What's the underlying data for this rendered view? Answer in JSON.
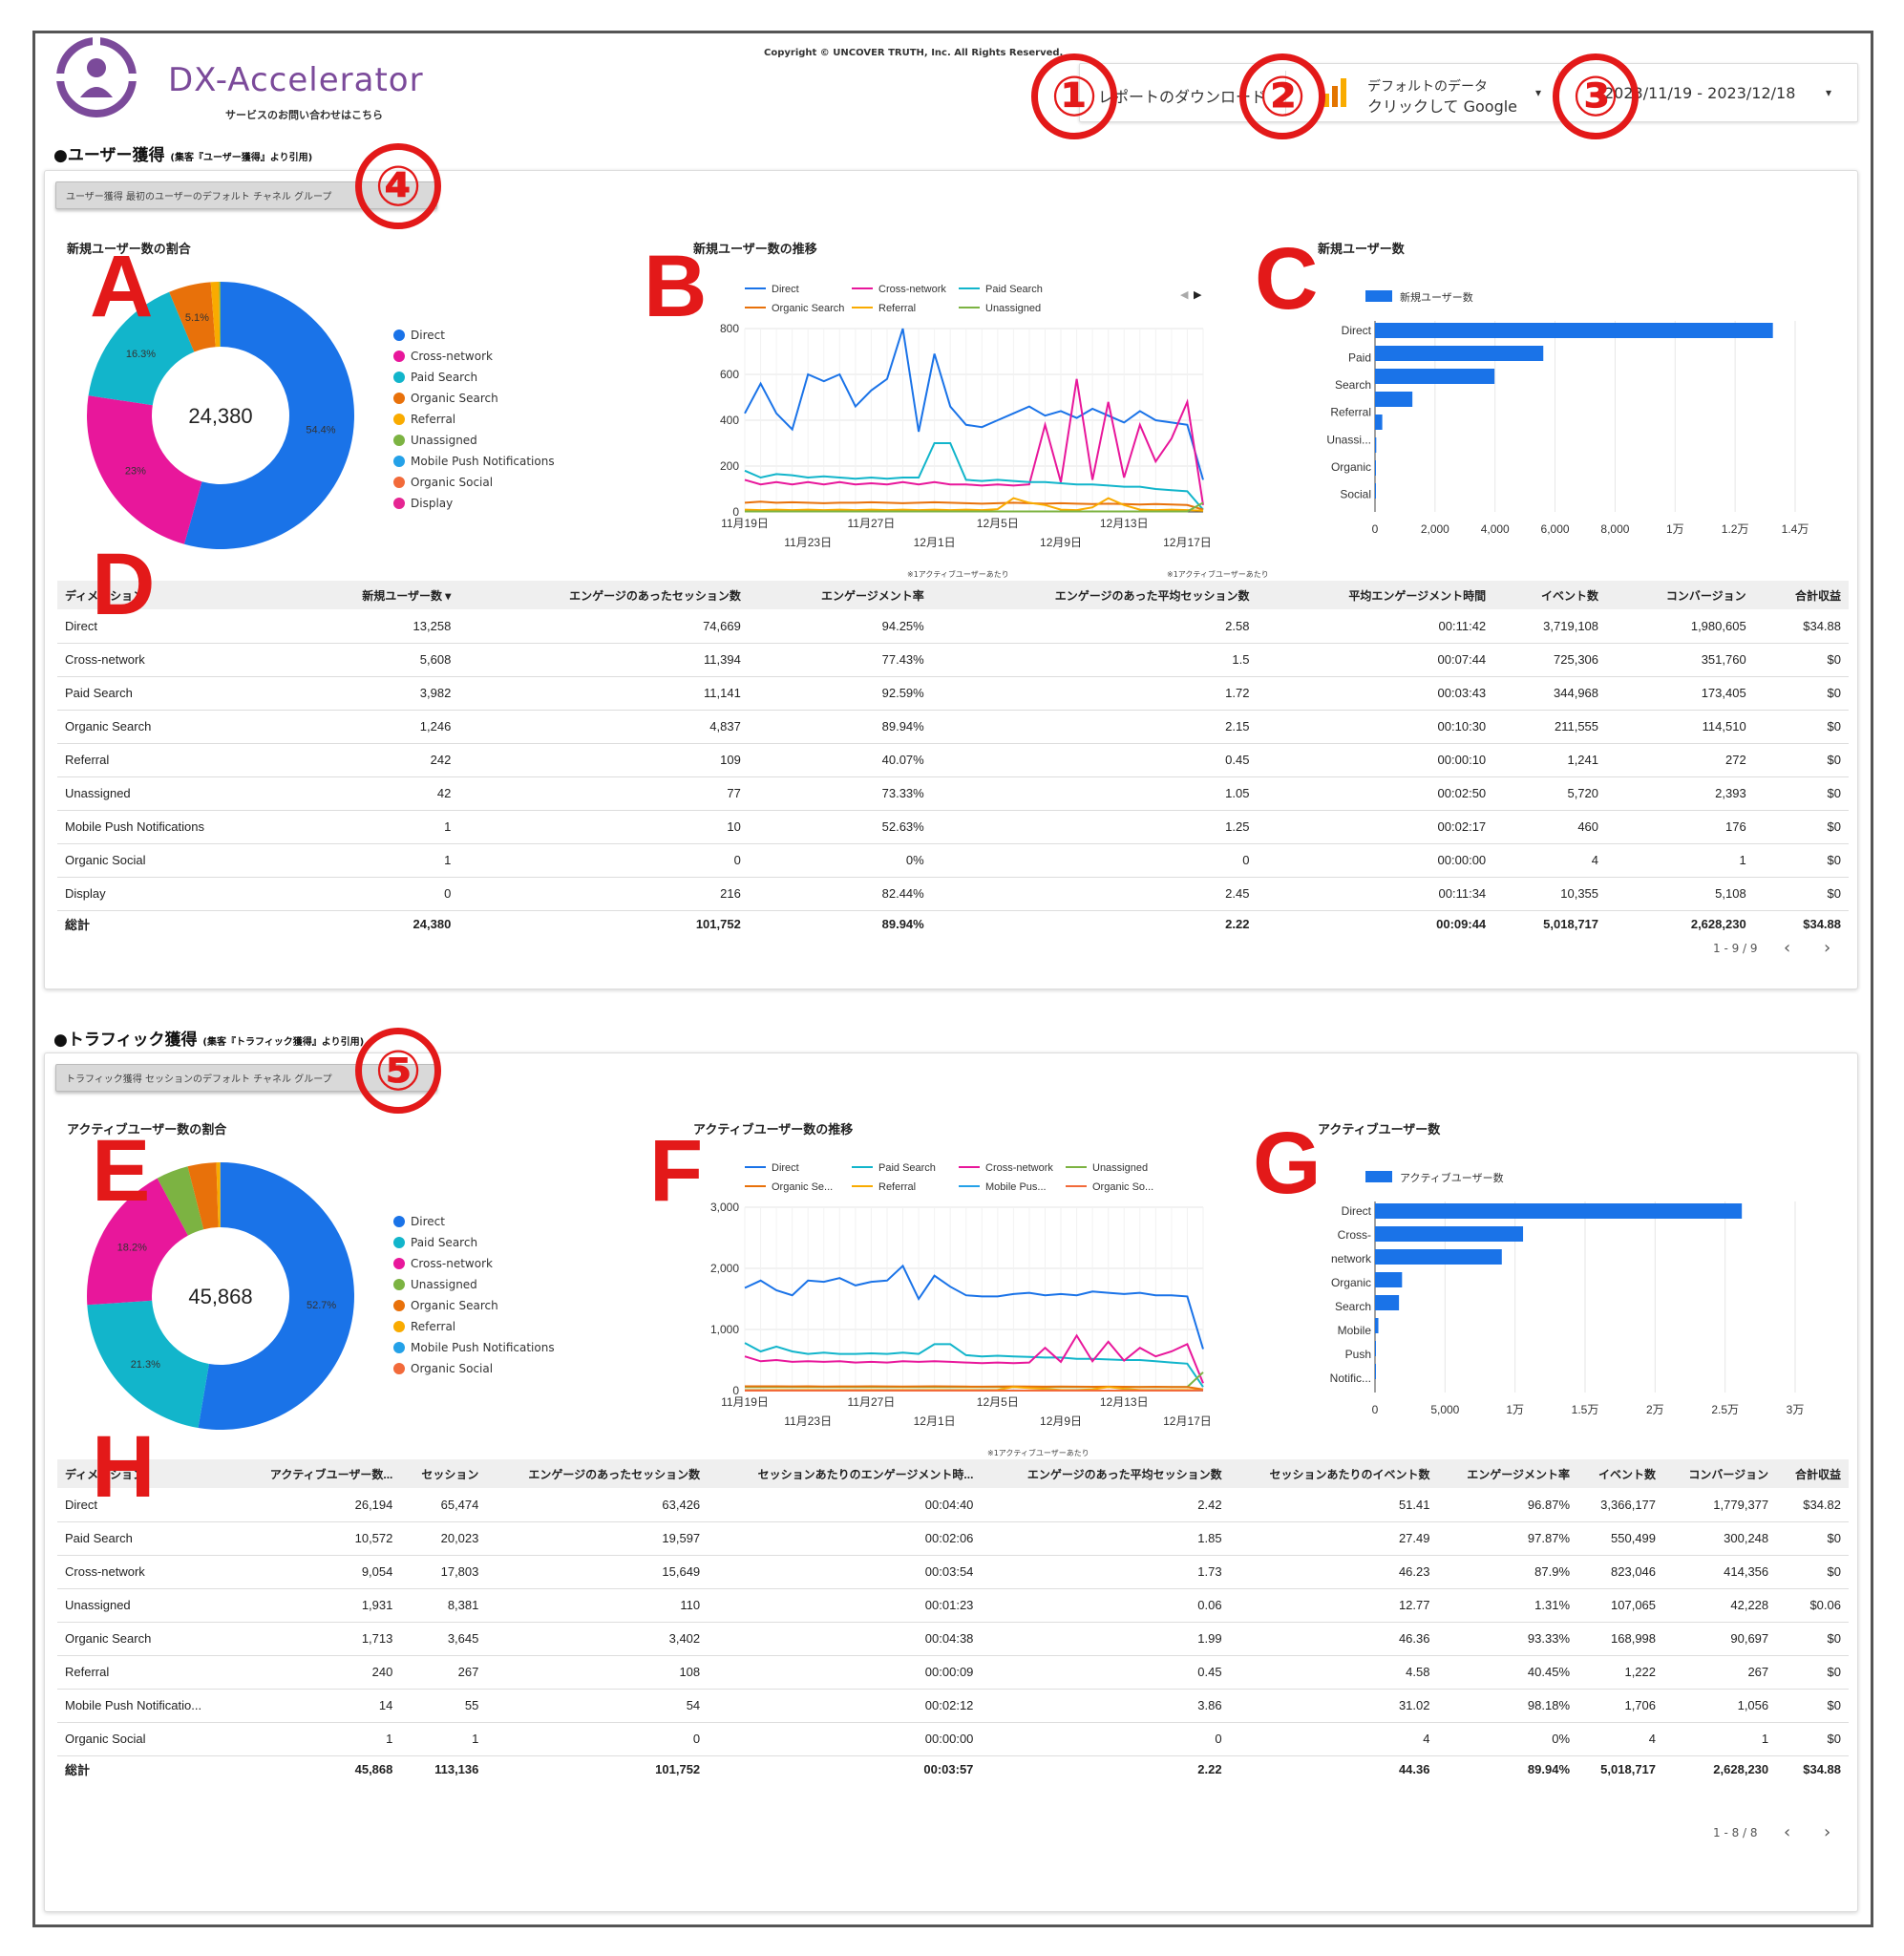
{
  "header": {
    "copyright": "Copyright © UNCOVER TRUTH, Inc. All Rights Reserved.",
    "logo_text": "DX-Accelerator",
    "logo_sub": "サービスのお問い合わせはこちら",
    "download_label": "レポートのダウンロード",
    "data_source_line1": "デフォルトのデータ",
    "data_source_line2": "クリックして Google",
    "date_range": "2023/11/19 - 2023/12/18"
  },
  "markers": {
    "m1": "①",
    "m2": "②",
    "m3": "③",
    "m4": "④",
    "m5": "⑤",
    "A": "A",
    "B": "B",
    "C": "C",
    "D": "D",
    "E": "E",
    "F": "F",
    "G": "G",
    "H": "H"
  },
  "section1": {
    "title": "●ユーザー獲得",
    "title_note": "(集客『ユーザー獲得』より引用)",
    "chip": "ユーザー獲得 最初のユーザーのデフォルト チャネル グループ",
    "donut_title": "新規ユーザー数の割合",
    "donut_total": "24,380",
    "donut_labels": [
      "54.4%",
      "23%",
      "16.3%",
      "5.1%"
    ],
    "legend": [
      {
        "name": "Direct",
        "color": "#1a73e8"
      },
      {
        "name": "Cross-network",
        "color": "#e8179b"
      },
      {
        "name": "Paid Search",
        "color": "#12b5cb"
      },
      {
        "name": "Organic Search",
        "color": "#e8710a"
      },
      {
        "name": "Referral",
        "color": "#f9ab00"
      },
      {
        "name": "Unassigned",
        "color": "#7cb342"
      },
      {
        "name": "Mobile Push Notifications",
        "color": "#24a1e8"
      },
      {
        "name": "Organic Social",
        "color": "#f26a3a"
      },
      {
        "name": "Display",
        "color": "#e52592"
      }
    ],
    "line_title": "新規ユーザー数の推移",
    "line_legend": [
      "Direct",
      "Cross-network",
      "Paid Search",
      "Organic Search",
      "Referral",
      "Unassigned"
    ],
    "line_y_ticks": [
      "800",
      "600",
      "400",
      "200",
      "0"
    ],
    "line_x_top": [
      "11月19日",
      "11月27日",
      "12月5日",
      "12月13日"
    ],
    "line_x_bottom": [
      "11月23日",
      "12月1日",
      "12月9日",
      "12月17日"
    ],
    "bar_title": "新規ユーザー数",
    "bar_legend": "新規ユーザー数",
    "bar_labels": [
      "Direct",
      "Paid",
      "Search",
      "Referral",
      "Unassi...",
      "Organic",
      "Social"
    ],
    "bar_x_ticks": [
      "0",
      "2,000",
      "4,000",
      "6,000",
      "8,000",
      "1万",
      "1.2万",
      "1.4万"
    ],
    "notes": [
      "※1アクティブユーザーあたり",
      "※1アクティブユーザーあたり"
    ],
    "table_headers": [
      "ディメンション",
      "新規ユーザー数 ▾",
      "エンゲージのあったセッション数",
      "エンゲージメント率",
      "エンゲージのあった平均セッション数",
      "平均エンゲージメント時間",
      "イベント数",
      "コンバージョン",
      "合計収益"
    ],
    "table_rows": [
      [
        "Direct",
        "13,258",
        "74,669",
        "94.25%",
        "2.58",
        "00:11:42",
        "3,719,108",
        "1,980,605",
        "$34.88"
      ],
      [
        "Cross-network",
        "5,608",
        "11,394",
        "77.43%",
        "1.5",
        "00:07:44",
        "725,306",
        "351,760",
        "$0"
      ],
      [
        "Paid Search",
        "3,982",
        "11,141",
        "92.59%",
        "1.72",
        "00:03:43",
        "344,968",
        "173,405",
        "$0"
      ],
      [
        "Organic Search",
        "1,246",
        "4,837",
        "89.94%",
        "2.15",
        "00:10:30",
        "211,555",
        "114,510",
        "$0"
      ],
      [
        "Referral",
        "242",
        "109",
        "40.07%",
        "0.45",
        "00:00:10",
        "1,241",
        "272",
        "$0"
      ],
      [
        "Unassigned",
        "42",
        "77",
        "73.33%",
        "1.05",
        "00:02:50",
        "5,720",
        "2,393",
        "$0"
      ],
      [
        "Mobile Push Notifications",
        "1",
        "10",
        "52.63%",
        "1.25",
        "00:02:17",
        "460",
        "176",
        "$0"
      ],
      [
        "Organic Social",
        "1",
        "0",
        "0%",
        "0",
        "00:00:00",
        "4",
        "1",
        "$0"
      ],
      [
        "Display",
        "0",
        "216",
        "82.44%",
        "2.45",
        "00:11:34",
        "10,355",
        "5,108",
        "$0"
      ]
    ],
    "table_total": [
      "総計",
      "24,380",
      "101,752",
      "89.94%",
      "2.22",
      "00:09:44",
      "5,018,717",
      "2,628,230",
      "$34.88"
    ],
    "pager": "1 - 9 / 9"
  },
  "section2": {
    "title": "●トラフィック獲得",
    "title_note": "(集客『トラフィック獲得』より引用)",
    "chip": "トラフィック獲得 セッションのデフォルト チャネル グループ",
    "donut_title": "アクティブユーザー数の割合",
    "donut_total": "45,868",
    "donut_labels": [
      "52.7%",
      "21.3%",
      "18.2%"
    ],
    "legend": [
      {
        "name": "Direct",
        "color": "#1a73e8"
      },
      {
        "name": "Paid Search",
        "color": "#12b5cb"
      },
      {
        "name": "Cross-network",
        "color": "#e8179b"
      },
      {
        "name": "Unassigned",
        "color": "#7cb342"
      },
      {
        "name": "Organic Search",
        "color": "#e8710a"
      },
      {
        "name": "Referral",
        "color": "#f9ab00"
      },
      {
        "name": "Mobile Push Notifications",
        "color": "#24a1e8"
      },
      {
        "name": "Organic Social",
        "color": "#f26a3a"
      }
    ],
    "line_title": "アクティブユーザー数の推移",
    "line_legend": [
      "Direct",
      "Paid Search",
      "Cross-network",
      "Unassigned",
      "Organic Se...",
      "Referral",
      "Mobile Pus...",
      "Organic So..."
    ],
    "line_y_ticks": [
      "3,000",
      "2,000",
      "1,000",
      "0"
    ],
    "line_x_top": [
      "11月19日",
      "11月27日",
      "12月5日",
      "12月13日"
    ],
    "line_x_bottom": [
      "11月23日",
      "12月1日",
      "12月9日",
      "12月17日"
    ],
    "bar_title": "アクティブユーザー数",
    "bar_legend": "アクティブユーザー数",
    "bar_labels": [
      "Direct",
      "Cross-",
      "network",
      "Organic",
      "Search",
      "Mobile",
      "Push",
      "Notific..."
    ],
    "bar_x_ticks": [
      "0",
      "5,000",
      "1万",
      "1.5万",
      "2万",
      "2.5万",
      "3万"
    ],
    "note": "※1アクティブユーザーあたり",
    "table_headers": [
      "ディメンション",
      "アクティブユーザー数...",
      "セッション",
      "エンゲージのあったセッション数",
      "セッションあたりのエンゲージメント時...",
      "エンゲージのあった平均セッション数",
      "セッションあたりのイベント数",
      "エンゲージメント率",
      "イベント数",
      "コンバージョン",
      "合計収益"
    ],
    "table_rows": [
      [
        "Direct",
        "26,194",
        "65,474",
        "63,426",
        "00:04:40",
        "2.42",
        "51.41",
        "96.87%",
        "3,366,177",
        "1,779,377",
        "$34.82"
      ],
      [
        "Paid Search",
        "10,572",
        "20,023",
        "19,597",
        "00:02:06",
        "1.85",
        "27.49",
        "97.87%",
        "550,499",
        "300,248",
        "$0"
      ],
      [
        "Cross-network",
        "9,054",
        "17,803",
        "15,649",
        "00:03:54",
        "1.73",
        "46.23",
        "87.9%",
        "823,046",
        "414,356",
        "$0"
      ],
      [
        "Unassigned",
        "1,931",
        "8,381",
        "110",
        "00:01:23",
        "0.06",
        "12.77",
        "1.31%",
        "107,065",
        "42,228",
        "$0.06"
      ],
      [
        "Organic Search",
        "1,713",
        "3,645",
        "3,402",
        "00:04:38",
        "1.99",
        "46.36",
        "93.33%",
        "168,998",
        "90,697",
        "$0"
      ],
      [
        "Referral",
        "240",
        "267",
        "108",
        "00:00:09",
        "0.45",
        "4.58",
        "40.45%",
        "1,222",
        "267",
        "$0"
      ],
      [
        "Mobile Push Notificatio...",
        "14",
        "55",
        "54",
        "00:02:12",
        "3.86",
        "31.02",
        "98.18%",
        "1,706",
        "1,056",
        "$0"
      ],
      [
        "Organic Social",
        "1",
        "1",
        "0",
        "00:00:00",
        "0",
        "4",
        "0%",
        "4",
        "1",
        "$0"
      ]
    ],
    "table_total": [
      "総計",
      "45,868",
      "113,136",
      "101,752",
      "00:03:57",
      "2.22",
      "44.36",
      "89.94%",
      "5,018,717",
      "2,628,230",
      "$34.88"
    ],
    "pager": "1 - 8 / 8"
  },
  "chart_data": [
    {
      "type": "pie",
      "title": "新規ユーザー数の割合",
      "categories": [
        "Direct",
        "Cross-network",
        "Paid Search",
        "Organic Search",
        "Referral",
        "Unassigned",
        "Mobile Push Notifications",
        "Organic Social",
        "Display"
      ],
      "values": [
        13258,
        5608,
        3982,
        1246,
        242,
        42,
        1,
        1,
        0
      ],
      "total": 24380
    },
    {
      "type": "line",
      "title": "新規ユーザー数の推移",
      "ylim": [
        0,
        800
      ],
      "x": [
        "11/19",
        "11/20",
        "11/21",
        "11/22",
        "11/23",
        "11/24",
        "11/25",
        "11/26",
        "11/27",
        "11/28",
        "11/29",
        "11/30",
        "12/1",
        "12/2",
        "12/3",
        "12/4",
        "12/5",
        "12/6",
        "12/7",
        "12/8",
        "12/9",
        "12/10",
        "12/11",
        "12/12",
        "12/13",
        "12/14",
        "12/15",
        "12/16",
        "12/17",
        "12/18"
      ],
      "series": [
        {
          "name": "Direct",
          "color": "#1a73e8",
          "values": [
            430,
            560,
            430,
            360,
            600,
            570,
            600,
            460,
            530,
            580,
            800,
            350,
            690,
            460,
            380,
            370,
            400,
            430,
            460,
            420,
            440,
            410,
            450,
            420,
            390,
            440,
            400,
            390,
            380,
            140
          ]
        },
        {
          "name": "Cross-network",
          "color": "#e8179b",
          "values": [
            140,
            120,
            130,
            120,
            130,
            120,
            130,
            120,
            125,
            120,
            130,
            120,
            130,
            120,
            120,
            115,
            120,
            115,
            120,
            380,
            130,
            580,
            140,
            480,
            150,
            380,
            220,
            320,
            480,
            30
          ]
        },
        {
          "name": "Paid Search",
          "color": "#12b5cb",
          "values": [
            180,
            150,
            165,
            160,
            150,
            155,
            150,
            145,
            150,
            145,
            150,
            150,
            300,
            300,
            140,
            135,
            140,
            135,
            130,
            130,
            125,
            120,
            120,
            115,
            110,
            110,
            100,
            95,
            90,
            10
          ]
        },
        {
          "name": "Organic Search",
          "color": "#e8710a",
          "values": [
            40,
            45,
            40,
            42,
            40,
            38,
            40,
            40,
            42,
            40,
            38,
            40,
            42,
            40,
            38,
            36,
            38,
            40,
            38,
            36,
            38,
            36,
            34,
            36,
            34,
            32,
            34,
            32,
            30,
            10
          ]
        },
        {
          "name": "Referral",
          "color": "#f9ab00",
          "values": [
            10,
            8,
            10,
            8,
            10,
            8,
            10,
            8,
            10,
            8,
            10,
            8,
            10,
            8,
            10,
            8,
            12,
            60,
            40,
            30,
            10,
            8,
            20,
            60,
            30,
            10,
            8,
            10,
            8,
            5
          ]
        },
        {
          "name": "Unassigned",
          "color": "#7cb342",
          "values": [
            2,
            2,
            2,
            2,
            2,
            2,
            2,
            2,
            2,
            2,
            2,
            2,
            2,
            2,
            2,
            2,
            2,
            2,
            2,
            2,
            2,
            2,
            2,
            2,
            2,
            2,
            2,
            2,
            2,
            40
          ]
        }
      ]
    },
    {
      "type": "bar",
      "title": "新規ユーザー数",
      "categories": [
        "Direct",
        "Cross-network",
        "Paid Search",
        "Organic Search",
        "Referral",
        "Unassigned",
        "Mobile Push Notifications",
        "Organic Social"
      ],
      "values": [
        13258,
        5608,
        3982,
        1246,
        242,
        42,
        1,
        1
      ],
      "xlim": [
        0,
        14000
      ]
    },
    {
      "type": "pie",
      "title": "アクティブユーザー数の割合",
      "categories": [
        "Direct",
        "Paid Search",
        "Cross-network",
        "Unassigned",
        "Organic Search",
        "Referral",
        "Mobile Push Notifications",
        "Organic Social"
      ],
      "values": [
        26194,
        10572,
        9054,
        1931,
        1713,
        240,
        14,
        1
      ],
      "total": 45868
    },
    {
      "type": "line",
      "title": "アクティブユーザー数の推移",
      "ylim": [
        0,
        3000
      ],
      "x": [
        "11/19",
        "11/20",
        "11/21",
        "11/22",
        "11/23",
        "11/24",
        "11/25",
        "11/26",
        "11/27",
        "11/28",
        "11/29",
        "11/30",
        "12/1",
        "12/2",
        "12/3",
        "12/4",
        "12/5",
        "12/6",
        "12/7",
        "12/8",
        "12/9",
        "12/10",
        "12/11",
        "12/12",
        "12/13",
        "12/14",
        "12/15",
        "12/16",
        "12/17",
        "12/18"
      ],
      "series": [
        {
          "name": "Direct",
          "color": "#1a73e8",
          "values": [
            1680,
            1800,
            1640,
            1560,
            1800,
            1780,
            1840,
            1720,
            1780,
            1800,
            2040,
            1500,
            1880,
            1700,
            1560,
            1540,
            1540,
            1580,
            1600,
            1560,
            1580,
            1560,
            1620,
            1600,
            1580,
            1600,
            1560,
            1560,
            1540,
            680
          ]
        },
        {
          "name": "Paid Search",
          "color": "#12b5cb",
          "values": [
            780,
            640,
            720,
            640,
            600,
            620,
            600,
            600,
            610,
            600,
            620,
            600,
            760,
            760,
            580,
            560,
            570,
            560,
            550,
            540,
            540,
            520,
            520,
            510,
            500,
            500,
            480,
            460,
            440,
            60
          ]
        },
        {
          "name": "Cross-network",
          "color": "#e8179b",
          "values": [
            560,
            480,
            500,
            470,
            480,
            470,
            480,
            460,
            470,
            460,
            480,
            470,
            480,
            470,
            460,
            450,
            460,
            450,
            460,
            700,
            470,
            900,
            480,
            800,
            490,
            700,
            560,
            640,
            760,
            120
          ]
        },
        {
          "name": "Unassigned",
          "color": "#7cb342",
          "values": [
            60,
            60,
            60,
            60,
            60,
            60,
            60,
            60,
            60,
            60,
            60,
            60,
            60,
            60,
            60,
            60,
            60,
            60,
            60,
            60,
            60,
            60,
            60,
            60,
            60,
            60,
            60,
            60,
            60,
            300
          ]
        },
        {
          "name": "Organic Se...",
          "color": "#e8710a",
          "values": [
            70,
            70,
            70,
            68,
            70,
            66,
            68,
            68,
            70,
            68,
            66,
            68,
            70,
            68,
            66,
            64,
            66,
            68,
            66,
            64,
            66,
            64,
            62,
            64,
            62,
            60,
            62,
            60,
            58,
            20
          ]
        },
        {
          "name": "Referral",
          "color": "#f9ab00",
          "values": [
            10,
            9,
            10,
            9,
            10,
            9,
            10,
            9,
            10,
            9,
            10,
            9,
            10,
            9,
            10,
            9,
            12,
            60,
            40,
            30,
            10,
            9,
            20,
            60,
            30,
            10,
            9,
            10,
            9,
            5
          ]
        },
        {
          "name": "Mobile Pus...",
          "color": "#24a1e8",
          "values": [
            1,
            1,
            0,
            1,
            0,
            1,
            0,
            1,
            0,
            1,
            0,
            1,
            0,
            1,
            0,
            1,
            0,
            1,
            0,
            1,
            0,
            1,
            0,
            0,
            1,
            0,
            1,
            0,
            0,
            0
          ]
        },
        {
          "name": "Organic So...",
          "color": "#f26a3a",
          "values": [
            0,
            0,
            0,
            0,
            0,
            0,
            0,
            0,
            0,
            0,
            0,
            0,
            0,
            0,
            0,
            0,
            0,
            0,
            0,
            0,
            0,
            0,
            0,
            0,
            0,
            0,
            0,
            0,
            0,
            1
          ]
        }
      ]
    },
    {
      "type": "bar",
      "title": "アクティブユーザー数",
      "categories": [
        "Direct",
        "Paid Search",
        "Cross-network",
        "Unassigned",
        "Organic Search",
        "Referral",
        "Mobile Push Notifications",
        "Organic Social"
      ],
      "values": [
        26194,
        10572,
        9054,
        1931,
        1713,
        240,
        14,
        1
      ],
      "xlim": [
        0,
        30000
      ]
    }
  ]
}
